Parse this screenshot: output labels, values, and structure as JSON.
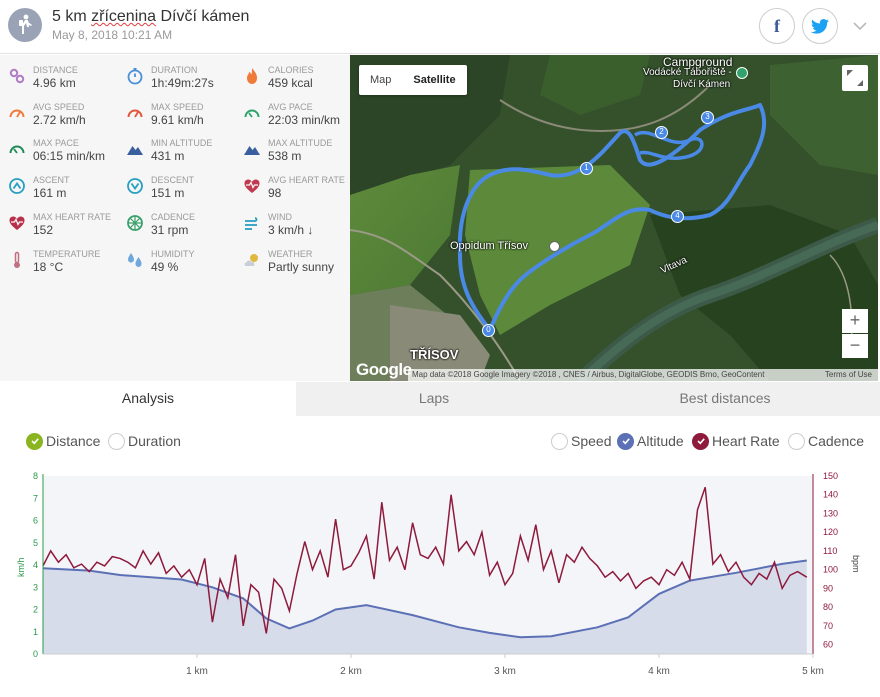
{
  "header": {
    "title_prefix": "5 km ",
    "title_misspelled": "zřícenina",
    "title_suffix": " Dívčí kámen",
    "datetime": "May 8, 2018 10:21 AM",
    "facebook_icon": "facebook-icon",
    "twitter_icon": "twitter-icon"
  },
  "stats": [
    {
      "label": "DISTANCE",
      "value": "4.96 km",
      "icon": "distance-icon",
      "color": "#b07cc6"
    },
    {
      "label": "DURATION",
      "value": "1h:49m:27s",
      "icon": "stopwatch-icon",
      "color": "#4a90d9"
    },
    {
      "label": "CALORIES",
      "value": "459 kcal",
      "icon": "flame-icon",
      "color": "#f07a3a"
    },
    {
      "label": "AVG SPEED",
      "value": "2.72 km/h",
      "icon": "speedometer-icon",
      "color": "#f07a3a"
    },
    {
      "label": "MAX SPEED",
      "value": "9.61 km/h",
      "icon": "speedometer-icon",
      "color": "#e2553c"
    },
    {
      "label": "AVG PACE",
      "value": "22:03 min/km",
      "icon": "gauge-icon",
      "color": "#2fa36b"
    },
    {
      "label": "MAX PACE",
      "value": "06:15 min/km",
      "icon": "gauge-icon",
      "color": "#1e8a57"
    },
    {
      "label": "MIN ALTITUDE",
      "value": "431 m",
      "icon": "mountain-icon",
      "color": "#3a5f9e"
    },
    {
      "label": "MAX ALTITUDE",
      "value": "538 m",
      "icon": "mountain-icon",
      "color": "#3a5f9e"
    },
    {
      "label": "ASCENT",
      "value": "161 m",
      "icon": "ascent-icon",
      "color": "#27a0c0"
    },
    {
      "label": "DESCENT",
      "value": "151 m",
      "icon": "descent-icon",
      "color": "#27a0c0"
    },
    {
      "label": "AVG HEART RATE",
      "value": "98",
      "icon": "heart-pulse-icon",
      "color": "#c0394f"
    },
    {
      "label": "MAX HEART RATE",
      "value": "152",
      "icon": "heart-icon",
      "color": "#b8304a"
    },
    {
      "label": "CADENCE",
      "value": "31 rpm",
      "icon": "cadence-icon",
      "color": "#3aa06a"
    },
    {
      "label": "WIND",
      "value": "3 km/h ↓",
      "icon": "wind-icon",
      "color": "#27a0c0"
    },
    {
      "label": "TEMPERATURE",
      "value": "18 °C",
      "icon": "thermometer-icon",
      "color": "#c07080"
    },
    {
      "label": "HUMIDITY",
      "value": "49 %",
      "icon": "humidity-icon",
      "color": "#6fa8dc"
    },
    {
      "label": "WEATHER",
      "value": "Partly sunny",
      "icon": "partly-sunny-icon",
      "color": "#e0b840"
    }
  ],
  "map": {
    "toggle_map": "Map",
    "toggle_satellite": "Satellite",
    "labels": [
      "Campground",
      "Vodácké Tábořiště -",
      "Dívčí Kámen",
      "Oppidum Třísov",
      "Vltava",
      "TŘÍSOV"
    ],
    "google": "Google",
    "attribution": "Map data ©2018 Google Imagery ©2018 , CNES / Airbus, DigitalGlobe, GEODIS Brno, GeoContent",
    "terms": "Terms of Use",
    "zoom_in": "+",
    "zoom_out": "−",
    "waypoints": [
      "0",
      "1",
      "2",
      "3",
      "4"
    ]
  },
  "tabs": [
    {
      "label": "Analysis",
      "active": true
    },
    {
      "label": "Laps",
      "active": false
    },
    {
      "label": "Best distances",
      "active": false
    }
  ],
  "x_axis_options": [
    {
      "label": "Distance",
      "checked": true,
      "color": "#8ab520"
    },
    {
      "label": "Duration",
      "checked": false
    }
  ],
  "series_options": [
    {
      "label": "Speed",
      "checked": false
    },
    {
      "label": "Altitude",
      "checked": true,
      "color": "#5b70b5"
    },
    {
      "label": "Heart Rate",
      "checked": true,
      "color": "#8e1a3c"
    },
    {
      "label": "Cadence",
      "checked": false
    }
  ],
  "chart_data": {
    "type": "line",
    "xlabel": "",
    "x_ticks": [
      "1 km",
      "2 km",
      "3 km",
      "4 km",
      "5 km"
    ],
    "xlim": [
      0,
      5
    ],
    "left_axis": {
      "label": "km/h",
      "range": [
        0,
        8
      ],
      "ticks": [
        0,
        1,
        2,
        3,
        4,
        5,
        6,
        7,
        8
      ],
      "color": "#2a9a4a"
    },
    "right_axis": {
      "label": "bpm",
      "range": [
        55,
        150
      ],
      "ticks": [
        60,
        70,
        80,
        90,
        100,
        110,
        120,
        130,
        140,
        150
      ],
      "color": "#8e1a3c"
    },
    "series": [
      {
        "name": "Altitude",
        "axis": "left",
        "color": "#5b70b5",
        "fill": "#d7dcea",
        "x": [
          0,
          0.3,
          0.5,
          0.9,
          1.1,
          1.3,
          1.45,
          1.6,
          1.75,
          1.9,
          2.1,
          2.4,
          2.7,
          2.9,
          3.1,
          3.3,
          3.6,
          3.8,
          4.0,
          4.2,
          4.5,
          4.8,
          4.96
        ],
        "y": [
          3.85,
          3.75,
          3.55,
          3.35,
          3.0,
          2.5,
          1.6,
          1.15,
          1.5,
          2.0,
          2.2,
          1.75,
          1.2,
          0.95,
          0.75,
          0.8,
          1.2,
          1.65,
          2.7,
          3.3,
          3.65,
          4.05,
          4.2
        ]
      },
      {
        "name": "Heart Rate",
        "axis": "right",
        "color": "#8e1a3c",
        "x": [
          0,
          0.05,
          0.1,
          0.15,
          0.2,
          0.25,
          0.3,
          0.35,
          0.4,
          0.45,
          0.5,
          0.55,
          0.6,
          0.65,
          0.7,
          0.75,
          0.8,
          0.85,
          0.9,
          0.95,
          1.0,
          1.05,
          1.1,
          1.15,
          1.2,
          1.25,
          1.3,
          1.35,
          1.4,
          1.45,
          1.5,
          1.55,
          1.6,
          1.65,
          1.7,
          1.75,
          1.8,
          1.85,
          1.9,
          1.95,
          2.0,
          2.05,
          2.1,
          2.15,
          2.2,
          2.25,
          2.3,
          2.35,
          2.4,
          2.45,
          2.5,
          2.55,
          2.6,
          2.65,
          2.7,
          2.75,
          2.8,
          2.85,
          2.9,
          2.95,
          3.0,
          3.05,
          3.1,
          3.15,
          3.2,
          3.25,
          3.3,
          3.35,
          3.4,
          3.45,
          3.5,
          3.55,
          3.6,
          3.65,
          3.7,
          3.75,
          3.8,
          3.85,
          3.9,
          3.95,
          4.0,
          4.05,
          4.1,
          4.15,
          4.2,
          4.25,
          4.3,
          4.35,
          4.4,
          4.45,
          4.5,
          4.55,
          4.6,
          4.65,
          4.7,
          4.75,
          4.8,
          4.85,
          4.9,
          4.96
        ],
        "y": [
          102,
          110,
          104,
          108,
          101,
          103,
          99,
          104,
          102,
          107,
          106,
          104,
          101,
          110,
          103,
          109,
          98,
          102,
          96,
          100,
          92,
          106,
          72,
          95,
          85,
          108,
          70,
          92,
          88,
          66,
          95,
          90,
          78,
          98,
          115,
          100,
          110,
          96,
          127,
          100,
          102,
          109,
          118,
          95,
          136,
          105,
          112,
          100,
          125,
          108,
          106,
          112,
          103,
          140,
          110,
          115,
          108,
          120,
          97,
          104,
          92,
          98,
          118,
          105,
          124,
          100,
          110,
          93,
          108,
          104,
          112,
          106,
          102,
          96,
          99,
          94,
          98,
          90,
          94,
          96,
          92,
          100,
          97,
          104,
          95,
          132,
          144,
          103,
          108,
          99,
          104,
          96,
          92,
          98,
          95,
          104,
          90,
          97,
          99,
          96
        ]
      }
    ]
  }
}
